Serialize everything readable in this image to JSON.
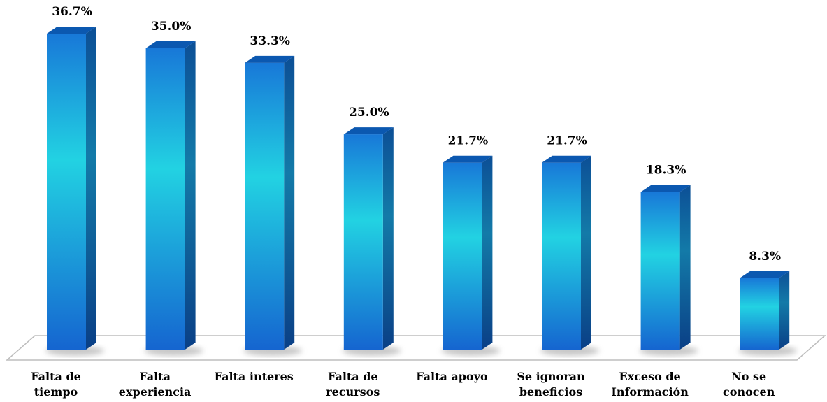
{
  "chart_data": {
    "type": "bar3d",
    "categories": [
      "Falta de\ntiempo",
      "Falta\nexperiencia",
      "Falta interes",
      "Falta de\nrecursos",
      "Falta apoyo",
      "Se ignoran\nbeneficios",
      "Exceso de\nInformación",
      "No se\nconocen"
    ],
    "values": [
      36.7,
      35.0,
      33.3,
      25.0,
      21.7,
      21.7,
      18.3,
      8.3
    ],
    "value_labels": [
      "36.7%",
      "35.0%",
      "33.3%",
      "25.0%",
      "21.7%",
      "21.7%",
      "18.3%",
      "8.3%"
    ],
    "color": "#1fa8e6"
  }
}
